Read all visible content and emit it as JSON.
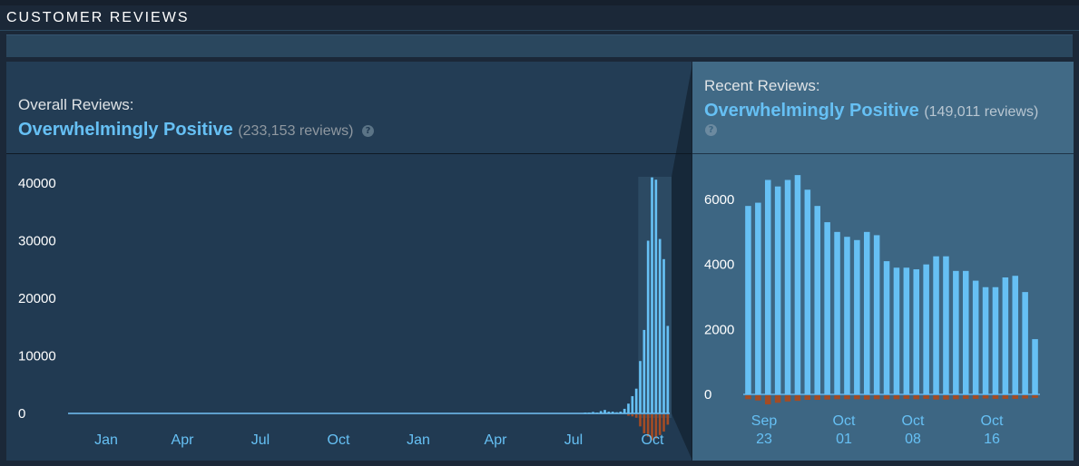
{
  "section": {
    "title": "CUSTOMER REVIEWS"
  },
  "overall": {
    "label": "Overall Reviews:",
    "summary": "Overwhelmingly Positive",
    "count": "(233,153 reviews)",
    "help": "?"
  },
  "recent": {
    "label": "Recent Reviews:",
    "summary": "Overwhelmingly Positive",
    "count": "(149,011 reviews)",
    "help": "?"
  },
  "colors": {
    "positive": "#66c0f4",
    "negative": "#a34c25",
    "summary_text": "#66c0f4"
  },
  "chart_data": [
    {
      "type": "bar",
      "xlabel": "",
      "ylabel": "",
      "ylim": [
        -1500,
        42000
      ],
      "yticks": [
        "40000",
        "30000",
        "20000",
        "10000",
        "0"
      ],
      "x_tick_labels": [
        "Jan",
        "Apr",
        "Jul",
        "Oct",
        "Jan",
        "Apr",
        "Jul",
        "Oct"
      ],
      "series": [
        {
          "values": [
            0,
            0,
            0,
            0,
            0,
            0,
            0,
            0,
            0,
            0,
            0,
            0,
            0,
            0,
            0,
            0,
            0,
            0,
            0,
            0,
            0,
            0,
            0,
            0,
            0,
            0,
            0,
            0,
            0,
            0,
            0,
            0,
            0,
            0,
            0,
            0,
            0,
            0,
            0,
            0,
            0,
            0,
            0,
            0,
            0,
            0,
            0,
            0,
            0,
            0,
            0,
            0,
            0,
            0,
            0,
            0,
            0,
            0,
            0,
            0,
            0,
            0,
            0,
            0,
            0,
            0,
            0,
            0,
            0,
            0,
            0,
            0,
            0,
            0,
            0,
            0,
            0,
            0,
            0,
            0,
            0,
            0,
            0,
            0,
            0,
            0,
            0,
            0,
            0,
            0,
            0,
            0,
            0,
            0,
            0,
            0,
            0,
            0,
            0,
            0,
            0,
            0,
            0,
            0,
            0,
            0,
            0,
            0,
            0,
            0,
            0,
            0,
            0,
            0,
            0,
            0,
            0,
            0,
            0,
            0,
            0,
            0,
            0,
            0,
            0,
            0,
            0,
            0,
            0,
            0,
            0,
            100,
            150,
            250,
            120,
            400,
            600,
            300,
            300,
            200,
            300,
            800,
            1700,
            3000,
            4300,
            9100,
            14500,
            30000,
            41000,
            40600,
            30300,
            26800,
            15200
          ]
        },
        {
          "values": [
            0,
            0,
            0,
            0,
            0,
            0,
            0,
            0,
            0,
            0,
            0,
            0,
            0,
            0,
            0,
            0,
            0,
            0,
            0,
            0,
            0,
            0,
            0,
            0,
            0,
            0,
            0,
            0,
            0,
            0,
            0,
            0,
            0,
            0,
            0,
            0,
            0,
            0,
            0,
            0,
            0,
            0,
            0,
            0,
            0,
            0,
            0,
            0,
            0,
            0,
            0,
            0,
            0,
            0,
            0,
            0,
            0,
            0,
            0,
            0,
            0,
            0,
            0,
            0,
            0,
            0,
            0,
            0,
            0,
            0,
            0,
            0,
            0,
            0,
            0,
            0,
            0,
            0,
            0,
            0,
            0,
            0,
            0,
            0,
            0,
            0,
            0,
            0,
            0,
            0,
            0,
            0,
            0,
            0,
            0,
            0,
            0,
            0,
            0,
            0,
            0,
            0,
            0,
            0,
            0,
            0,
            0,
            0,
            0,
            0,
            0,
            0,
            0,
            0,
            0,
            0,
            0,
            0,
            0,
            0,
            0,
            0,
            0,
            0,
            0,
            0,
            0,
            0,
            0,
            0,
            0,
            0,
            0,
            0,
            0,
            0,
            0,
            0,
            0,
            0,
            0,
            0,
            -80,
            -120,
            -200,
            -700,
            -1100,
            -1300,
            -1500,
            -1400,
            -1200,
            -1000,
            -600
          ]
        }
      ],
      "grid": false,
      "legend": "none"
    },
    {
      "type": "bar",
      "xlabel": "",
      "ylabel": "",
      "ylim": [
        -300,
        7000
      ],
      "yticks": [
        "6000",
        "4000",
        "2000",
        "0"
      ],
      "x_tick_labels": [
        [
          "Sep",
          "23"
        ],
        [
          "Oct",
          "01"
        ],
        [
          "Oct",
          "08"
        ],
        [
          "Oct",
          "16"
        ]
      ],
      "series": [
        {
          "values": [
            5800,
            5900,
            6600,
            6400,
            6600,
            6750,
            6300,
            5800,
            5300,
            5000,
            4850,
            4750,
            5000,
            4900,
            4100,
            3900,
            3900,
            3850,
            4000,
            4250,
            4250,
            3800,
            3800,
            3500,
            3300,
            3300,
            3600,
            3650,
            3150,
            1700
          ]
        },
        {
          "values": [
            -120,
            -160,
            -280,
            -230,
            -190,
            -170,
            -140,
            -140,
            -130,
            -120,
            -120,
            -120,
            -130,
            -120,
            -120,
            -120,
            -110,
            -120,
            -110,
            -130,
            -130,
            -120,
            -110,
            -110,
            -100,
            -110,
            -110,
            -110,
            -100,
            -80
          ]
        }
      ],
      "grid": false,
      "legend": "none"
    }
  ]
}
